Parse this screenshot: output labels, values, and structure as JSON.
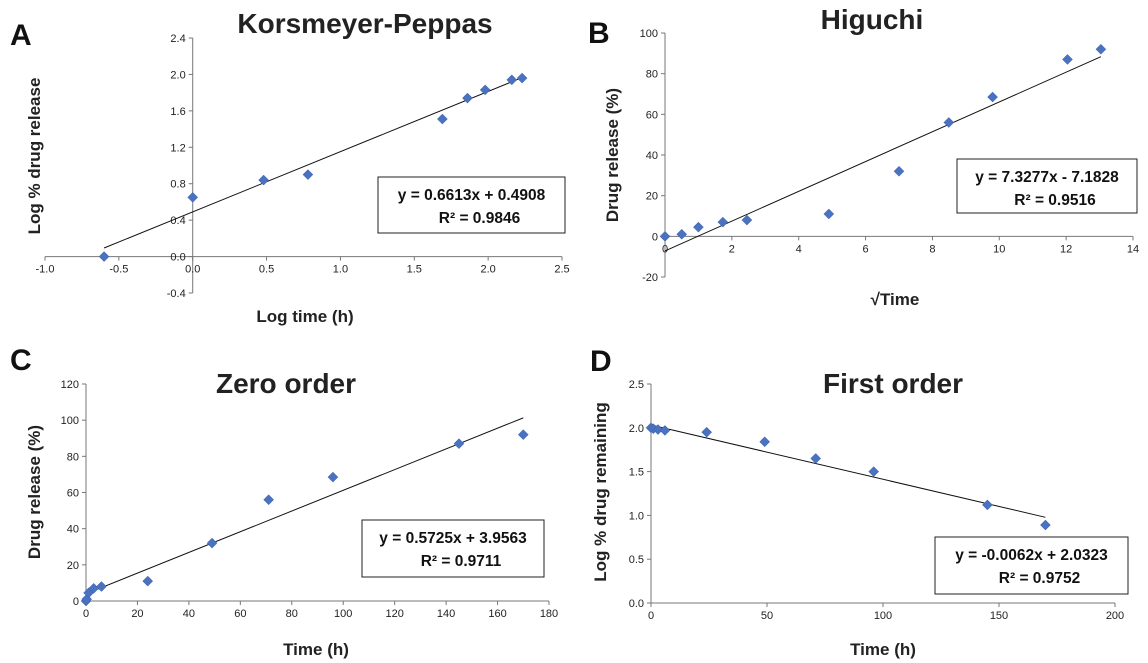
{
  "chart_data": [
    {
      "panel": "A",
      "type": "scatter",
      "title": "Korsmeyer-Peppas",
      "xlabel": "Log time (h)",
      "ylabel": "Log  % drug release",
      "xlim": [
        -1.0,
        2.5
      ],
      "ylim": [
        -0.4,
        2.4
      ],
      "xticks": [
        -1.0,
        -0.5,
        0.0,
        0.5,
        1.0,
        1.5,
        2.0,
        2.5
      ],
      "yticks": [
        -0.4,
        0.0,
        0.4,
        0.8,
        1.2,
        1.6,
        2.0,
        2.4
      ],
      "xtick_labels": [
        "-1.0",
        "-0.5",
        "0.0",
        "0.5",
        "1.0",
        "1.5",
        "2.0",
        "2.5"
      ],
      "ytick_labels": [
        "-0.4",
        "0.0",
        "0.4",
        "0.8",
        "1.2",
        "1.6",
        "2.0",
        "2.4"
      ],
      "x": [
        -0.6,
        0.0,
        0.48,
        0.78,
        1.69,
        1.86,
        1.98,
        2.16,
        2.23
      ],
      "y": [
        0.0,
        0.65,
        0.84,
        0.9,
        1.51,
        1.74,
        1.83,
        1.94,
        1.96
      ],
      "trendline": {
        "slope": 0.6613,
        "intercept": 0.4908,
        "x_range": [
          -0.6,
          2.23
        ]
      },
      "equation": "y = 0.6613x + 0.4908",
      "r2": "R² = 0.9846"
    },
    {
      "panel": "B",
      "type": "scatter",
      "title": "Higuchi",
      "xlabel": "√Time",
      "ylabel": "Drug release (%)",
      "xlim": [
        0,
        14
      ],
      "ylim": [
        -20,
        100
      ],
      "xticks": [
        0,
        2,
        4,
        6,
        8,
        10,
        12,
        14
      ],
      "yticks": [
        -20,
        0,
        20,
        40,
        60,
        80,
        100
      ],
      "xtick_labels": [
        "0",
        "2",
        "4",
        "6",
        "8",
        "10",
        "12",
        "14"
      ],
      "ytick_labels": [
        "-20",
        "0",
        "20",
        "40",
        "60",
        "80",
        "100"
      ],
      "x": [
        0.0,
        0.5,
        1.0,
        1.73,
        2.45,
        4.9,
        7.0,
        8.49,
        9.8,
        12.04,
        13.04
      ],
      "y": [
        0.0,
        1.0,
        4.5,
        7.0,
        8.0,
        11.0,
        32.0,
        56.0,
        68.5,
        87.0,
        92.0
      ],
      "trendline": {
        "slope": 7.3277,
        "intercept": -7.1828,
        "x_range": [
          0,
          13.04
        ]
      },
      "equation": "y = 7.3277x - 7.1828",
      "r2": "R² = 0.9516"
    },
    {
      "panel": "C",
      "type": "scatter",
      "title": "Zero order",
      "xlabel": "Time (h)",
      "ylabel": "Drug release (%)",
      "xlim": [
        0,
        180
      ],
      "ylim": [
        0,
        120
      ],
      "xticks": [
        0,
        20,
        40,
        60,
        80,
        100,
        120,
        140,
        160,
        180
      ],
      "yticks": [
        0,
        20,
        40,
        60,
        80,
        100,
        120
      ],
      "xtick_labels": [
        "0",
        "20",
        "40",
        "60",
        "80",
        "100",
        "120",
        "140",
        "160",
        "180"
      ],
      "ytick_labels": [
        "0",
        "20",
        "40",
        "60",
        "80",
        "100",
        "120"
      ],
      "x": [
        0,
        0.25,
        1,
        3,
        6,
        24,
        49,
        71,
        96,
        145,
        170
      ],
      "y": [
        0.0,
        1.0,
        4.5,
        7.0,
        8.0,
        11.0,
        32.0,
        56.0,
        68.5,
        87.0,
        92.0
      ],
      "trendline": {
        "slope": 0.5725,
        "intercept": 3.9563,
        "x_range": [
          0,
          170
        ]
      },
      "equation": "y = 0.5725x + 3.9563",
      "r2": "R² = 0.9711"
    },
    {
      "panel": "D",
      "type": "scatter",
      "title": "First order",
      "xlabel": "Time (h)",
      "ylabel": "Log  % drug remaining",
      "xlim": [
        0,
        200
      ],
      "ylim": [
        0.0,
        2.5
      ],
      "xticks": [
        0,
        50,
        100,
        150,
        200
      ],
      "yticks": [
        0.0,
        0.5,
        1.0,
        1.5,
        2.0,
        2.5
      ],
      "xtick_labels": [
        "0",
        "50",
        "100",
        "150",
        "200"
      ],
      "ytick_labels": [
        "0.0",
        "0.5",
        "1.0",
        "1.5",
        "2.0",
        "2.5"
      ],
      "x": [
        0,
        1,
        3,
        6,
        24,
        49,
        71,
        96,
        145,
        170
      ],
      "y": [
        2.0,
        1.99,
        1.98,
        1.97,
        1.95,
        1.84,
        1.65,
        1.5,
        1.12,
        0.89
      ],
      "trendline": {
        "slope": -0.0062,
        "intercept": 2.0323,
        "x_range": [
          0,
          170
        ]
      },
      "equation": "y = -0.0062x + 2.0323",
      "r2": "R² = 0.9752"
    }
  ]
}
